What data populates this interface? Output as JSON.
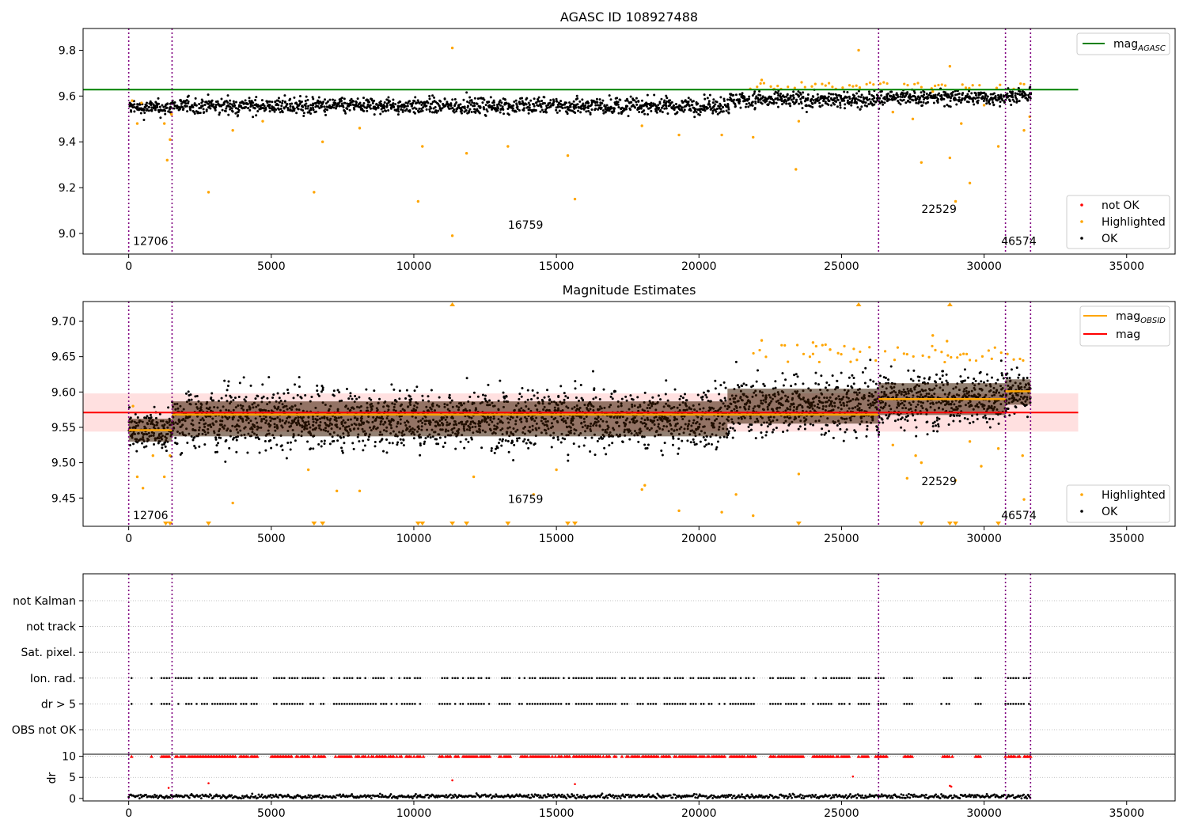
{
  "chart_data": [
    {
      "type": "scatter",
      "title": "AGASC ID 108927488",
      "xlim": [
        -1600,
        36700
      ],
      "ylim": [
        8.91,
        9.895
      ],
      "xticks": [
        0,
        5000,
        10000,
        15000,
        20000,
        25000,
        30000,
        35000
      ],
      "xtick_labels": [
        "0",
        "5000",
        "10000",
        "15000",
        "20000",
        "25000",
        "30000",
        "35000"
      ],
      "yticks": [
        9.0,
        9.2,
        9.4,
        9.6,
        9.8
      ],
      "ytick_labels": [
        "9.0",
        "9.2",
        "9.4",
        "9.6",
        "9.8"
      ],
      "obs_boundaries": [
        0,
        1520,
        26300,
        30750,
        31630
      ],
      "obs_labels": [
        {
          "text": "12706",
          "x": 150,
          "y": 8.95
        },
        {
          "text": "16759",
          "x": 13300,
          "y": 9.02
        },
        {
          "text": "22529",
          "x": 27800,
          "y": 9.09
        },
        {
          "text": "46574",
          "x": 30600,
          "y": 8.95
        }
      ],
      "lines": [
        {
          "name": "mag",
          "subscript": "AGASC",
          "y": 9.628,
          "x_range": [
            -1600,
            33300
          ],
          "color": "#008000"
        }
      ],
      "ok_band": {
        "segments": [
          {
            "x": [
              0,
              1520
            ],
            "center": 9.548,
            "spread": 0.045
          },
          {
            "x": [
              1520,
              21000
            ],
            "center": 9.557,
            "spread": 0.048
          },
          {
            "x": [
              21000,
              26300
            ],
            "center": 9.583,
            "spread": 0.048
          },
          {
            "x": [
              26300,
              30750
            ],
            "center": 9.593,
            "spread": 0.045
          },
          {
            "x": [
              30750,
              31630
            ],
            "center": 9.602,
            "spread": 0.042
          }
        ]
      },
      "series": [
        {
          "name": "not OK",
          "color": "#ff0000",
          "points": []
        },
        {
          "name": "Highlighted",
          "color": "#ffa500",
          "points": [
            [
              120,
              9.58
            ],
            [
              300,
              9.48
            ],
            [
              450,
              9.57
            ],
            [
              1250,
              9.48
            ],
            [
              1350,
              9.32
            ],
            [
              1450,
              9.41
            ],
            [
              1500,
              9.52
            ],
            [
              2800,
              9.18
            ],
            [
              3650,
              9.45
            ],
            [
              4700,
              9.49
            ],
            [
              6500,
              9.18
            ],
            [
              6800,
              9.4
            ],
            [
              8100,
              9.46
            ],
            [
              10150,
              9.14
            ],
            [
              10300,
              9.38
            ],
            [
              11350,
              8.99
            ],
            [
              11350,
              9.81
            ],
            [
              11850,
              9.35
            ],
            [
              13300,
              9.38
            ],
            [
              15400,
              9.34
            ],
            [
              15650,
              9.15
            ],
            [
              18000,
              9.47
            ],
            [
              19300,
              9.43
            ],
            [
              20800,
              9.43
            ],
            [
              21900,
              9.42
            ],
            [
              22200,
              9.67
            ],
            [
              23400,
              9.28
            ],
            [
              23500,
              9.49
            ],
            [
              25600,
              9.8
            ],
            [
              26800,
              9.53
            ],
            [
              27500,
              9.5
            ],
            [
              27800,
              9.31
            ],
            [
              28200,
              9.62
            ],
            [
              28800,
              9.73
            ],
            [
              28800,
              9.33
            ],
            [
              29000,
              9.14
            ],
            [
              29200,
              9.48
            ],
            [
              29500,
              9.22
            ],
            [
              30000,
              9.56
            ],
            [
              30500,
              9.38
            ],
            [
              31400,
              9.45
            ],
            [
              31600,
              9.51
            ]
          ]
        },
        {
          "name": "OK",
          "color": "#000000",
          "points": []
        }
      ],
      "legends": [
        {
          "position": "upper right",
          "entries": [
            {
              "label": "mag",
              "subscript": "AGASC",
              "kind": "line",
              "color": "#008000"
            }
          ]
        },
        {
          "position": "lower right",
          "entries": [
            {
              "label": "not OK",
              "kind": "dot",
              "color": "#ff0000"
            },
            {
              "label": "Highlighted",
              "kind": "dot",
              "color": "#ffa500"
            },
            {
              "label": "OK",
              "kind": "dot",
              "color": "#000000"
            }
          ]
        }
      ]
    },
    {
      "type": "scatter",
      "title": "Magnitude Estimates",
      "xlim": [
        -1600,
        36700
      ],
      "ylim": [
        9.41,
        9.728
      ],
      "xticks": [
        0,
        5000,
        10000,
        15000,
        20000,
        25000,
        30000,
        35000
      ],
      "xtick_labels": [
        "0",
        "5000",
        "10000",
        "15000",
        "20000",
        "25000",
        "30000",
        "35000"
      ],
      "yticks": [
        9.45,
        9.5,
        9.55,
        9.6,
        9.65,
        9.7
      ],
      "ytick_labels": [
        "9.45",
        "9.50",
        "9.55",
        "9.60",
        "9.65",
        "9.70"
      ],
      "obs_boundaries": [
        0,
        1520,
        26300,
        30750,
        31630
      ],
      "obs_labels": [
        {
          "text": "12706",
          "x": 150,
          "y": 9.42
        },
        {
          "text": "16759",
          "x": 13300,
          "y": 9.443
        },
        {
          "text": "22529",
          "x": 27800,
          "y": 9.468
        },
        {
          "text": "46574",
          "x": 30600,
          "y": 9.42
        }
      ],
      "mag": {
        "value": 9.571,
        "band": [
          9.544,
          9.598
        ],
        "x_range": [
          -1600,
          33300
        ],
        "color": "#ff0000"
      },
      "mag_obsid": [
        {
          "x": [
            0,
            1520
          ],
          "y": 9.546
        },
        {
          "x": [
            1520,
            26300
          ],
          "y": 9.568
        },
        {
          "x": [
            26300,
            30750
          ],
          "y": 9.59
        },
        {
          "x": [
            30750,
            31630
          ],
          "y": 9.601
        }
      ],
      "ok_band": {
        "segments": [
          {
            "x": [
              0,
              1520
            ],
            "center": 9.546,
            "spread": 0.036
          },
          {
            "x": [
              1520,
              21000
            ],
            "center": 9.562,
            "spread": 0.055
          },
          {
            "x": [
              21000,
              26300
            ],
            "center": 9.58,
            "spread": 0.055
          },
          {
            "x": [
              26300,
              30750
            ],
            "center": 9.59,
            "spread": 0.05
          },
          {
            "x": [
              30750,
              31630
            ],
            "center": 9.6,
            "spread": 0.04
          }
        ]
      },
      "series": [
        {
          "name": "Highlighted",
          "color": "#ffa500",
          "points": [
            [
              150,
              9.58
            ],
            [
              300,
              9.48
            ],
            [
              500,
              9.464
            ],
            [
              850,
              9.51
            ],
            [
              1250,
              9.48
            ],
            [
              1450,
              9.51
            ],
            [
              3650,
              9.443
            ],
            [
              6300,
              9.49
            ],
            [
              7300,
              9.46
            ],
            [
              8100,
              9.46
            ],
            [
              12100,
              9.48
            ],
            [
              14200,
              9.455
            ],
            [
              15000,
              9.49
            ],
            [
              18000,
              9.462
            ],
            [
              18100,
              9.468
            ],
            [
              19300,
              9.432
            ],
            [
              20800,
              9.43
            ],
            [
              21300,
              9.455
            ],
            [
              21900,
              9.425
            ],
            [
              22200,
              9.673
            ],
            [
              23500,
              9.484
            ],
            [
              24000,
              9.67
            ],
            [
              24600,
              9.66
            ],
            [
              26800,
              9.525
            ],
            [
              27300,
              9.478
            ],
            [
              27600,
              9.51
            ],
            [
              27800,
              9.5
            ],
            [
              28200,
              9.68
            ],
            [
              28700,
              9.672
            ],
            [
              29000,
              9.475
            ],
            [
              29500,
              9.53
            ],
            [
              29900,
              9.495
            ],
            [
              30500,
              9.52
            ],
            [
              31400,
              9.448
            ],
            [
              31350,
              9.51
            ]
          ],
          "clipped_top_x": [
            11350,
            25600,
            28800
          ],
          "clipped_bottom_x": [
            1300,
            1450,
            2800,
            6500,
            6800,
            10150,
            10300,
            11350,
            11850,
            13300,
            15400,
            15650,
            23500,
            27800,
            28800,
            29000,
            30500
          ]
        },
        {
          "name": "OK",
          "color": "#000000",
          "points": []
        }
      ],
      "legends": [
        {
          "position": "upper right",
          "entries": [
            {
              "label": "mag",
              "subscript": "OBSID",
              "kind": "line",
              "color": "#ffa500"
            },
            {
              "label": "mag",
              "kind": "line",
              "color": "#ff0000"
            }
          ]
        },
        {
          "position": "lower right",
          "entries": [
            {
              "label": "Highlighted",
              "kind": "dot",
              "color": "#ffa500"
            },
            {
              "label": "OK",
              "kind": "dot",
              "color": "#000000"
            }
          ]
        }
      ]
    },
    {
      "type": "scatter",
      "title": "",
      "xlim": [
        -1600,
        36700
      ],
      "categories": [
        "OBS not OK",
        "dr > 5",
        "Ion. rad.",
        "Sat. pixel.",
        "not track",
        "not Kalman"
      ],
      "flag_rows": {
        "Ion. rad.": [
          [
            100,
            100
          ],
          [
            800,
            800
          ],
          [
            1150,
            1450
          ],
          [
            1650,
            4550
          ],
          [
            5000,
            6900
          ],
          [
            7200,
            10400
          ],
          [
            10900,
            12700
          ],
          [
            13000,
            13400
          ],
          [
            13700,
            15500
          ],
          [
            15600,
            17100
          ],
          [
            17300,
            18600
          ],
          [
            18700,
            20900
          ],
          [
            21100,
            22000
          ],
          [
            22500,
            23700
          ],
          [
            24000,
            25300
          ],
          [
            25600,
            26000
          ],
          [
            26200,
            26600
          ],
          [
            27200,
            27500
          ],
          [
            28500,
            28900
          ],
          [
            29700,
            29900
          ],
          [
            30750,
            31630
          ]
        ],
        "dr > 5": [
          [
            100,
            100
          ],
          [
            800,
            800
          ],
          [
            1150,
            1450
          ],
          [
            1650,
            4550
          ],
          [
            5000,
            6900
          ],
          [
            7200,
            10400
          ],
          [
            10900,
            12700
          ],
          [
            13000,
            13400
          ],
          [
            13700,
            15500
          ],
          [
            15600,
            17100
          ],
          [
            17300,
            18600
          ],
          [
            18700,
            20900
          ],
          [
            21100,
            22000
          ],
          [
            22500,
            23700
          ],
          [
            24000,
            25300
          ],
          [
            25600,
            26000
          ],
          [
            26200,
            26600
          ],
          [
            27200,
            27500
          ],
          [
            28500,
            28900
          ],
          [
            29700,
            29900
          ],
          [
            30750,
            31630
          ]
        ]
      },
      "obs_boundaries": [
        0,
        1520,
        26300,
        30750,
        31630
      ]
    },
    {
      "type": "scatter",
      "title": "",
      "ylabel": "dr",
      "xlim": [
        -1600,
        36700
      ],
      "ylim": [
        -0.6,
        10.5
      ],
      "xticks": [
        0,
        5000,
        10000,
        15000,
        20000,
        25000,
        30000,
        35000
      ],
      "xtick_labels": [
        "0",
        "5000",
        "10000",
        "15000",
        "20000",
        "25000",
        "30000",
        "35000"
      ],
      "yticks": [
        0,
        5,
        10
      ],
      "ytick_labels": [
        "0",
        "5",
        "10"
      ],
      "clip_line": 10,
      "baseline": {
        "mean": 0.5,
        "spread": 0.5
      },
      "outliers": [
        [
          1400,
          2.5
        ],
        [
          2800,
          3.6
        ],
        [
          11350,
          4.3
        ],
        [
          15650,
          3.4
        ],
        [
          25400,
          5.2
        ],
        [
          28800,
          3.0
        ],
        [
          28850,
          2.8
        ]
      ],
      "obs_boundaries": [
        0,
        1520,
        26300,
        30750,
        31630
      ]
    }
  ]
}
